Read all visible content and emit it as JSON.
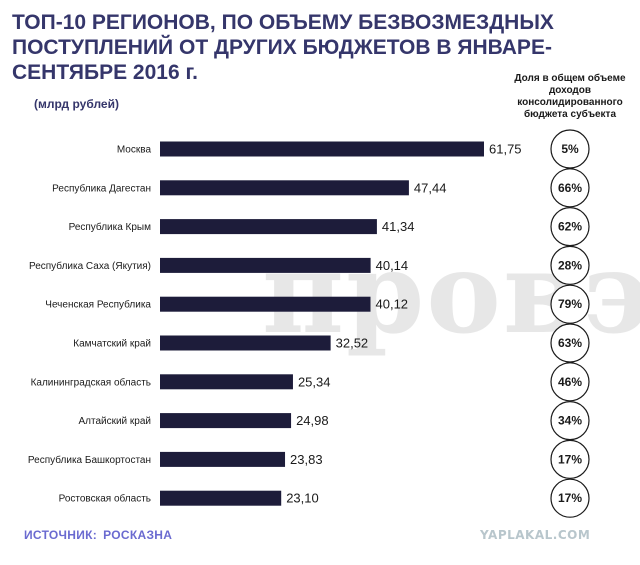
{
  "title": "ТОП-10 РЕГИОНОВ, ПО ОБЪЕМУ БЕЗВОЗМЕЗДНЫХ ПОСТУПЛЕНИЙ ОТ ДРУГИХ БЮДЖЕТОВ В ЯНВАРЕ-СЕНТЯБРЕ 2016 г.",
  "units": "(млрд рублей)",
  "share_header": "Доля в общем объеме доходов консолидированного бюджета субъекта",
  "watermark": "провэд",
  "source_label": "ИСТОЧНИК:",
  "source_value": "РОСКАЗНА",
  "site_watermark": "YAPLAKAL.COM",
  "colors": {
    "bar": "#1d1c3a",
    "title": "#35366b",
    "source": "#6a6ad0"
  },
  "chart_data": {
    "type": "bar",
    "orientation": "horizontal",
    "categories": [
      "Москва",
      "Республика Дагестан",
      "Республика Крым",
      "Республика Саха (Якутия)",
      "Чеченская Республика",
      "Камчатский край",
      "Калининградская область",
      "Алтайский край",
      "Республика Башкортостан",
      "Ростовская область"
    ],
    "values": [
      61.75,
      47.44,
      41.34,
      40.14,
      40.12,
      32.52,
      25.34,
      24.98,
      23.83,
      23.1
    ],
    "value_labels": [
      "61,75",
      "47,44",
      "41,34",
      "40,14",
      "40,12",
      "32,52",
      "25,34",
      "24,98",
      "23,83",
      "23,10"
    ],
    "shares": [
      "5%",
      "66%",
      "62%",
      "28%",
      "79%",
      "63%",
      "46%",
      "34%",
      "17%",
      "17%"
    ],
    "xlim": [
      0,
      61.75
    ],
    "grid": false
  }
}
